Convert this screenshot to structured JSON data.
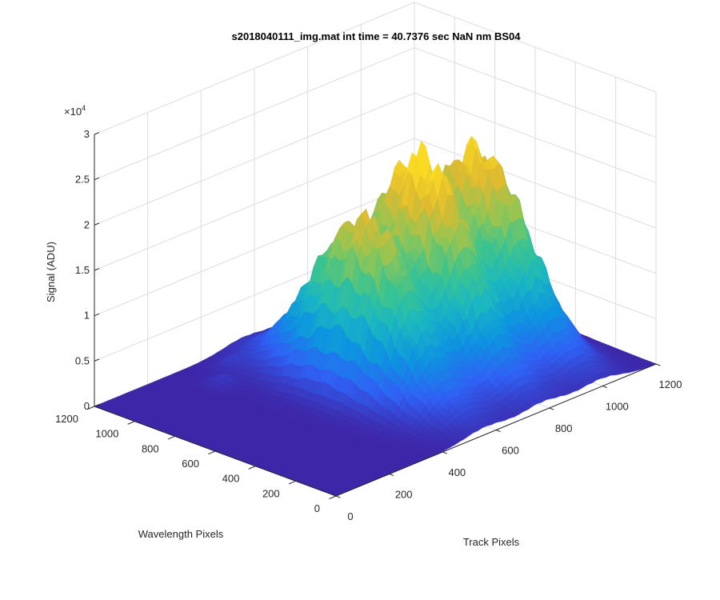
{
  "chart_data": {
    "type": "surface",
    "title": "s2018040111_img.mat int time = 40.7376 sec  NaN nm BS04",
    "xlabel": "Track Pixels",
    "ylabel": "Wavelength Pixels",
    "zlabel": "Signal (ADU)",
    "xlim": [
      0,
      1200
    ],
    "ylim": [
      0,
      1200
    ],
    "zlim": [
      0,
      30000
    ],
    "x_ticks": [
      "0",
      "200",
      "400",
      "600",
      "800",
      "1000",
      "1200"
    ],
    "y_ticks": [
      "0",
      "200",
      "400",
      "600",
      "800",
      "1000",
      "1200"
    ],
    "z_ticks": [
      "0",
      "0.5",
      "1",
      "1.5",
      "2",
      "2.5",
      "3"
    ],
    "z_exponent_base": "×10",
    "z_exponent_power": "4",
    "grid": true,
    "colormap": [
      "#3e26a8",
      "#2f61f5",
      "#0d94e0",
      "#1ab6c2",
      "#3cc48f",
      "#93c553",
      "#dfba30",
      "#fada23"
    ],
    "background_level": 0,
    "series": [
      {
        "track_center": 560,
        "track_width": 110,
        "wavelength_center": 600,
        "wavelength_width": 340,
        "peak": 18000
      },
      {
        "track_center": 775,
        "track_width": 110,
        "wavelength_center": 600,
        "wavelength_width": 340,
        "peak": 22000
      },
      {
        "track_center": 990,
        "track_width": 110,
        "wavelength_center": 600,
        "wavelength_width": 340,
        "peak": 20500
      },
      {
        "track_center": 330,
        "track_width": 40,
        "wavelength_center": 1000,
        "wavelength_width": 60,
        "peak": 1000
      },
      {
        "track_center": 420,
        "track_width": 40,
        "wavelength_center": 1080,
        "wavelength_width": 60,
        "peak": 800
      }
    ]
  }
}
